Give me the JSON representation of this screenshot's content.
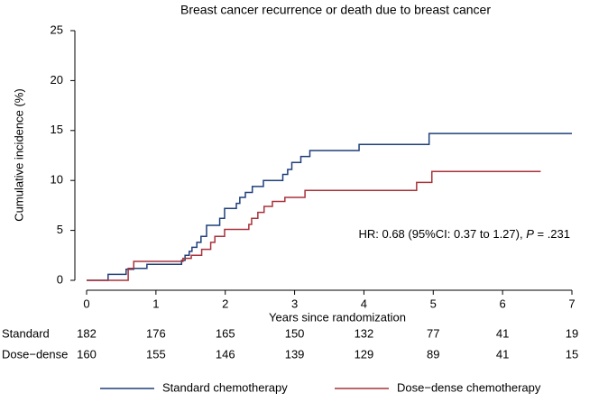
{
  "chart_data": {
    "type": "line",
    "step": "post",
    "title": "Breast cancer recurrence or death due to breast cancer",
    "xlabel": "Years since randomization",
    "ylabel": "Cumulative incidence (%)",
    "xlim": [
      0,
      7
    ],
    "xticks": [
      0,
      1,
      2,
      3,
      4,
      5,
      6,
      7
    ],
    "ylim": [
      0,
      25
    ],
    "yticks": [
      0,
      5,
      10,
      15,
      20,
      25
    ],
    "annotation": [
      "HR: 0.68 (95%CI: 0.37 to 1.27), ",
      "P",
      " = .231"
    ],
    "series": [
      {
        "name": "Standard chemotherapy",
        "color": "#1f3f7a",
        "x": [
          0,
          0.31,
          0.57,
          0.68,
          0.87,
          1.37,
          1.42,
          1.48,
          1.52,
          1.59,
          1.65,
          1.73,
          1.92,
          1.99,
          2.16,
          2.21,
          2.29,
          2.39,
          2.55,
          2.83,
          2.9,
          2.96,
          3.09,
          3.22,
          3.93,
          4.94,
          7.0
        ],
        "values": [
          0,
          0.6,
          1.1,
          1.2,
          1.6,
          2.0,
          2.5,
          2.9,
          3.3,
          3.8,
          4.4,
          5.5,
          6.2,
          7.2,
          7.7,
          8.3,
          8.8,
          9.4,
          10.0,
          10.6,
          11.1,
          11.8,
          12.4,
          13.0,
          13.6,
          14.7,
          14.7
        ]
      },
      {
        "name": "Dose−dense chemotherapy",
        "color": "#a8323a",
        "x": [
          0,
          0.6,
          0.68,
          1.39,
          1.51,
          1.66,
          1.79,
          1.85,
          1.99,
          2.34,
          2.38,
          2.47,
          2.56,
          2.68,
          2.86,
          3.15,
          4.76,
          4.98,
          6.55
        ],
        "values": [
          0,
          1.2,
          1.9,
          2.2,
          2.5,
          3.1,
          3.8,
          4.4,
          5.1,
          5.6,
          6.2,
          6.8,
          7.4,
          7.9,
          8.3,
          9.0,
          9.8,
          10.9,
          10.9
        ]
      }
    ],
    "risk_table": {
      "rows": [
        {
          "label": "Standard",
          "values": [
            182,
            176,
            165,
            150,
            132,
            77,
            41,
            19
          ]
        },
        {
          "label": "Dose−dense",
          "values": [
            160,
            155,
            146,
            139,
            129,
            89,
            41,
            15
          ]
        }
      ]
    }
  }
}
